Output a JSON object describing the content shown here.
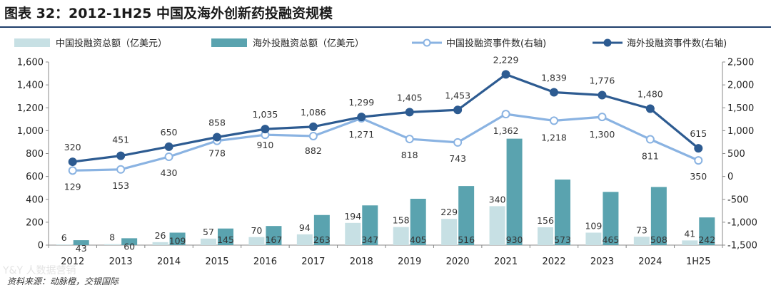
{
  "title": "图表 32：2012-1H25 中国及海外创新药投融资规模",
  "source": "资料来源：动脉橙，交银国际",
  "watermark": "Y&Y 人数据营销",
  "colors": {
    "china_bar": "#c7e0e4",
    "overseas_bar": "#5aa3af",
    "china_line": "#8ab3e2",
    "overseas_line": "#2d5b91"
  },
  "chart_data": {
    "type": "bar+line",
    "categories": [
      "2012",
      "2013",
      "2014",
      "2015",
      "2016",
      "2017",
      "2018",
      "2019",
      "2020",
      "2021",
      "2022",
      "2023",
      "2024",
      "1H25"
    ],
    "series": [
      {
        "name": "中国投融资总额（亿美元）",
        "type": "bar",
        "axis": "left",
        "values": [
          6,
          8,
          26,
          57,
          70,
          94,
          194,
          158,
          229,
          340,
          156,
          109,
          73,
          41
        ]
      },
      {
        "name": "海外投融资总额（亿美元）",
        "type": "bar",
        "axis": "left",
        "values": [
          43,
          60,
          109,
          145,
          167,
          263,
          347,
          405,
          516,
          930,
          573,
          465,
          508,
          242
        ]
      },
      {
        "name": "中国投融资事件数(右轴)",
        "type": "line",
        "axis": "right",
        "values": [
          129,
          153,
          430,
          778,
          910,
          882,
          1271,
          818,
          743,
          1362,
          1218,
          1300,
          811,
          350
        ]
      },
      {
        "name": "海外投融资事件数(右轴)",
        "type": "line",
        "axis": "right",
        "values": [
          320,
          451,
          650,
          858,
          1035,
          1086,
          1299,
          1405,
          1453,
          2229,
          1839,
          1776,
          1480,
          615
        ]
      }
    ],
    "left_axis": {
      "min": 0,
      "max": 1600,
      "ticks": [
        "0",
        "200",
        "400",
        "600",
        "800",
        "1,000",
        "1,200",
        "1,400",
        "1,600"
      ]
    },
    "right_axis": {
      "min": -1500,
      "max": 2500,
      "ticks": [
        "-1,500",
        "-1,000",
        "-500",
        "0",
        "500",
        "1,000",
        "1,500",
        "2,000",
        "2,500"
      ]
    },
    "legend_position": "top"
  }
}
